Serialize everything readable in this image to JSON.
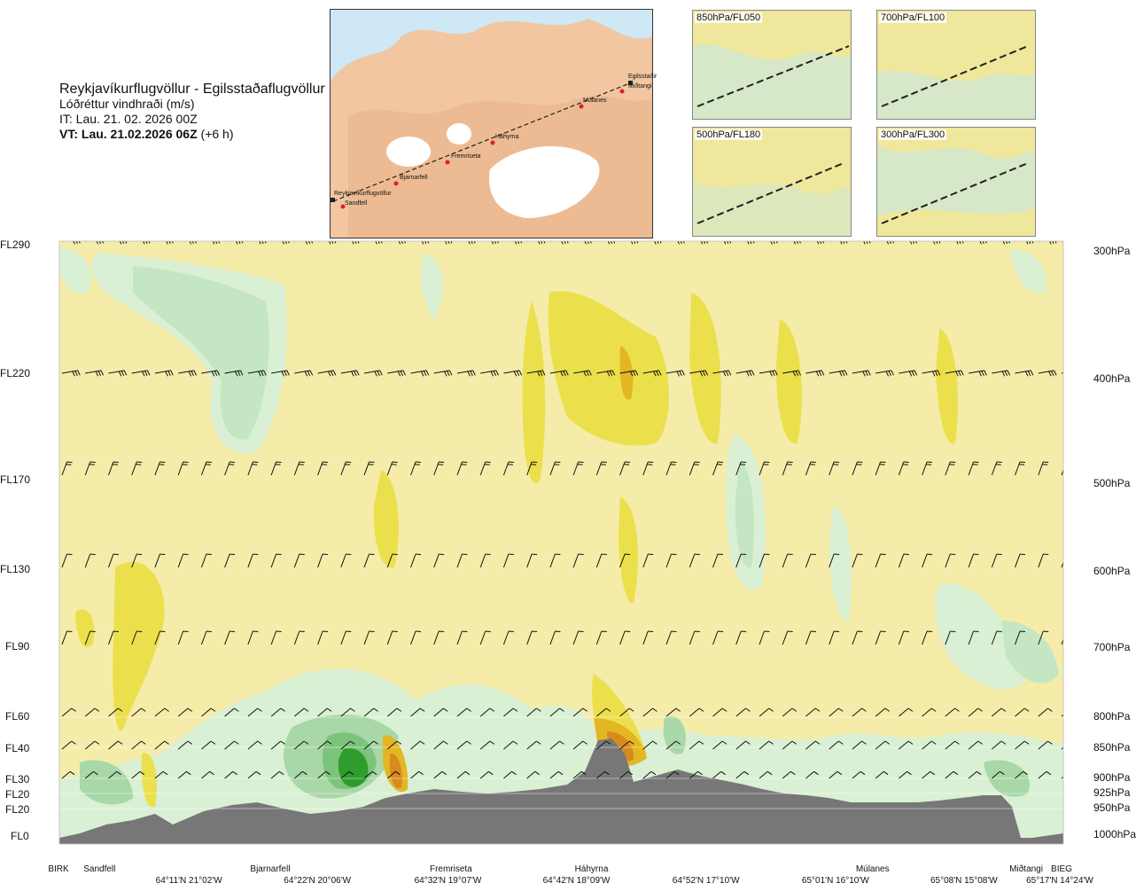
{
  "header": {
    "route_title": "Reykjavíkurflugvöllur - Egilsstaðaflugvöllur",
    "parameter": "Lóðréttur vindhraði (m/s)",
    "issue_time": "IT: Lau. 21. 02. 2026 00Z",
    "valid_label": "VT: Lau. 21.02.2026 06Z",
    "valid_offset": "(+6 h)"
  },
  "route_map": {
    "waypoints": [
      "Reykjavíkurflugvöllur",
      "Sandfell",
      "Bjarnarfell",
      "Fremriseta",
      "Háhyrna",
      "Múlanes",
      "Miðtangi",
      "Egilsstaðir"
    ]
  },
  "thumbnails": [
    {
      "label": "850hPa/FL050"
    },
    {
      "label": "700hPa/FL100"
    },
    {
      "label": "500hPa/FL180"
    },
    {
      "label": "300hPa/FL300"
    }
  ],
  "colors": {
    "strong_down": "#2e9d2e",
    "moderate_down": "#7cc47c",
    "weak_down": "#b9e0b9",
    "slight_down": "#d9f0d4",
    "neutral_low": "#f7f2c9",
    "neutral": "#f5ecaa",
    "weak_up": "#ebe04c",
    "moderate_up": "#e3b623",
    "strong_up": "#d98a1e",
    "terrain": "#777777"
  },
  "chart_data": {
    "type": "heatmap",
    "title": "Lóðréttur vindhraði (m/s)",
    "levels_left": [
      "FL290",
      "FL220",
      "FL170",
      "FL130",
      "FL90",
      "FL60",
      "FL40",
      "FL30",
      "FL20",
      "FL20",
      "FL0"
    ],
    "levels_right": [
      "300hPa",
      "400hPa",
      "500hPa",
      "600hPa",
      "700hPa",
      "800hPa",
      "850hPa",
      "900hPa",
      "925hPa",
      "950hPa",
      "1000hPa"
    ],
    "route_points": [
      {
        "name": "BIRK",
        "pos": 0.0
      },
      {
        "name": "Sandfell",
        "pos": 0.04
      },
      {
        "name": "Bjarnarfell",
        "pos": 0.21
      },
      {
        "name": "Fremriseta",
        "pos": 0.39
      },
      {
        "name": "Háhyrna",
        "pos": 0.53
      },
      {
        "name": "Múlanes",
        "pos": 0.81
      },
      {
        "name": "Miðtangi",
        "pos": 0.963
      },
      {
        "name": "BIEG",
        "pos": 1.0
      }
    ],
    "coordinates": [
      {
        "label": "64°11'N 21°02'W",
        "pos": 0.129
      },
      {
        "label": "64°22'N 20°06'W",
        "pos": 0.257
      },
      {
        "label": "64°32'N 19°07'W",
        "pos": 0.387
      },
      {
        "label": "64°42'N 18°09'W",
        "pos": 0.515
      },
      {
        "label": "64°52'N 17°10'W",
        "pos": 0.644
      },
      {
        "label": "65°01'N 16°10'W",
        "pos": 0.773
      },
      {
        "label": "65°08'N 15°08'W",
        "pos": 0.901
      },
      {
        "label": "65°17'N 14°24'W",
        "pos": 1.0
      }
    ]
  }
}
